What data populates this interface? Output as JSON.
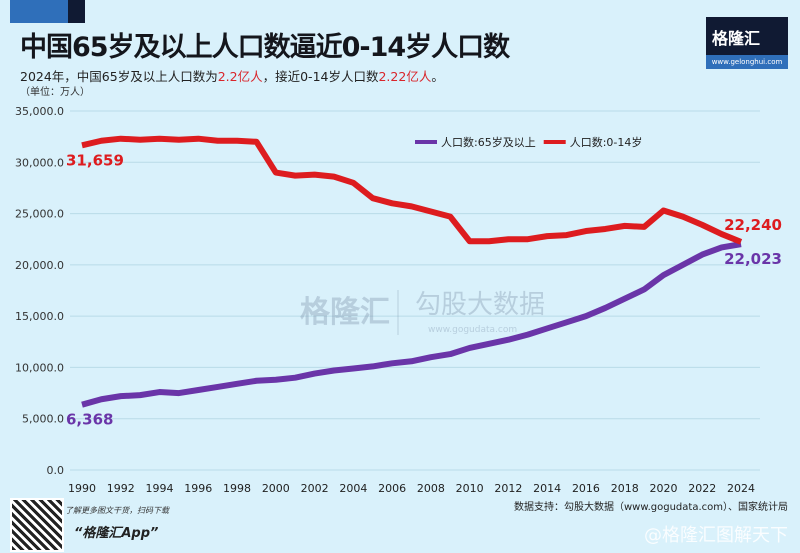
{
  "header": {
    "title": "中国65岁及以上人口数逼近0-14岁人口数",
    "subtitle_pre": "2024年，中国65岁及以上人口数为",
    "subtitle_hl1": "2.2亿人",
    "subtitle_mid": "，接近0-14岁人口数",
    "subtitle_hl2": "2.22亿人",
    "subtitle_post": "。",
    "unit": "（单位：万人）"
  },
  "logo": {
    "name": "格隆汇",
    "url": "www.gelonghui.com"
  },
  "watermark_center": {
    "brand": "格隆汇",
    "partner": "勾股大数据",
    "url": "www.gogudata.com"
  },
  "footer": {
    "qr_text": "了解更多图文干货，扫码下载",
    "app": "“格隆汇App”",
    "source": "数据支持：勾股大数据（www.gogudata.com）、国家统计局",
    "watermark": "@格隆汇图解天下"
  },
  "chart_data": {
    "type": "line",
    "title": "中国65岁及以上人口数逼近0-14岁人口数",
    "ylabel": "（单位：万人）",
    "ylim": [
      0,
      35000
    ],
    "yticks": [
      "0.0",
      "5,000.0",
      "10,000.0",
      "15,000.0",
      "20,000.0",
      "25,000.0",
      "30,000.0",
      "35,000.0"
    ],
    "grid": true,
    "legend": "top-right",
    "x": [
      1990,
      1991,
      1992,
      1993,
      1994,
      1995,
      1996,
      1997,
      1998,
      1999,
      2000,
      2001,
      2002,
      2003,
      2004,
      2005,
      2006,
      2007,
      2008,
      2009,
      2010,
      2011,
      2012,
      2013,
      2014,
      2015,
      2016,
      2017,
      2018,
      2019,
      2020,
      2021,
      2022,
      2023,
      2024
    ],
    "xticks": [
      "1990",
      "1992",
      "1994",
      "1996",
      "1998",
      "2000",
      "2002",
      "2004",
      "2006",
      "2008",
      "2010",
      "2012",
      "2014",
      "2016",
      "2018",
      "2020",
      "2022",
      "2024"
    ],
    "series": [
      {
        "name": "人口数:65岁及以上",
        "color": "#6a35a8",
        "start_label": "6,368",
        "end_label": "22,023",
        "values": [
          6368,
          6900,
          7200,
          7300,
          7600,
          7500,
          7800,
          8100,
          8400,
          8700,
          8800,
          9000,
          9400,
          9700,
          9900,
          10100,
          10400,
          10600,
          11000,
          11300,
          11900,
          12300,
          12700,
          13200,
          13800,
          14400,
          15000,
          15800,
          16700,
          17600,
          19000,
          20000,
          21000,
          21700,
          22023
        ]
      },
      {
        "name": "人口数:0-14岁",
        "color": "#dd1c1f",
        "start_label": "31,659",
        "end_label": "22,240",
        "values": [
          31659,
          32100,
          32300,
          32200,
          32300,
          32200,
          32300,
          32100,
          32100,
          32000,
          29000,
          28700,
          28800,
          28600,
          28000,
          26500,
          26000,
          25700,
          25200,
          24700,
          22300,
          22300,
          22500,
          22500,
          22800,
          22900,
          23300,
          23500,
          23800,
          23700,
          25300,
          24700,
          23900,
          23000,
          22240
        ]
      }
    ]
  }
}
